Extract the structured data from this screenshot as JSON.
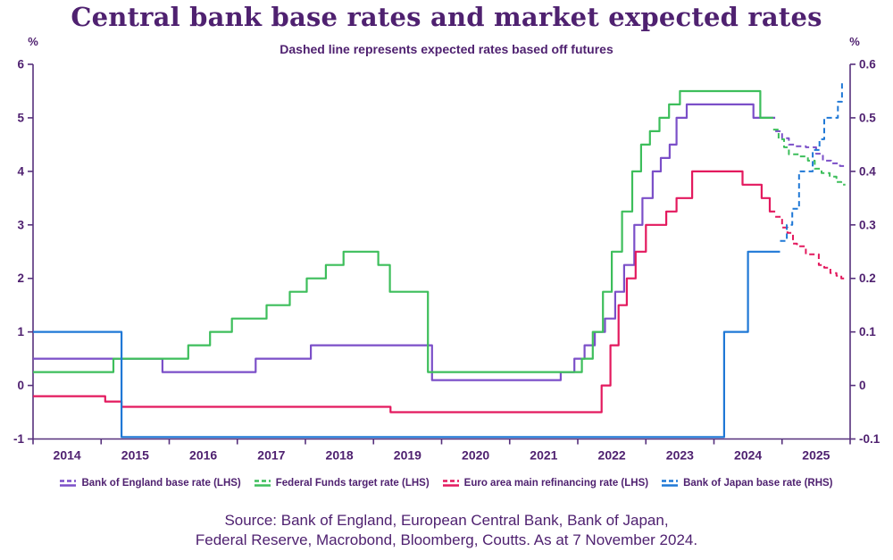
{
  "chart": {
    "title": "Central bank base rates and market expected rates",
    "subtitle": "Dashed line represents expected rates based off futures"
  },
  "source": {
    "line1": "Source: Bank of England, European Central Bank, Bank of Japan,",
    "line2": "Federal Reserve, Macrobond, Bloomberg, Coutts. As at 7 November 2024."
  },
  "colors": {
    "text_purple": "#4F2170",
    "axis_purple": "#56307C",
    "boe_purple": "#7B4FC8",
    "fed_green": "#3DBE5B",
    "ecb_red": "#E3195E",
    "boj_blue": "#1F78D6",
    "background": "#FFFFFF"
  },
  "legend": {
    "items": [
      {
        "id": "boe",
        "label": "Bank of England base rate (LHS)",
        "color": "#7B4FC8"
      },
      {
        "id": "fed",
        "label": "Federal Funds target rate (LHS)",
        "color": "#3DBE5B"
      },
      {
        "id": "ecb",
        "label": "Euro area main refinancing rate (LHS)",
        "color": "#E3195E"
      },
      {
        "id": "boj",
        "label": "Bank of Japan base rate (RHS)",
        "color": "#1F78D6"
      }
    ]
  },
  "chart_data": {
    "type": "line",
    "title": "Central bank base rates and market expected rates",
    "subtitle": "Dashed line represents expected rates based off futures",
    "note": "solid = actual policy rate, dashed = market expected rate from futures; x values are decimal years",
    "x_domain": [
      2014,
      2026
    ],
    "x_tick_years": [
      2014,
      2015,
      2016,
      2017,
      2018,
      2019,
      2020,
      2021,
      2022,
      2023,
      2024,
      2025,
      2026
    ],
    "x_tick_labels": [
      "2014",
      "2015",
      "2016",
      "2017",
      "2018",
      "2019",
      "2020",
      "2021",
      "2022",
      "2023",
      "2024",
      "2025"
    ],
    "grid": false,
    "legend_position": "bottom",
    "left_axis": {
      "unit": "%",
      "min": -1,
      "max": 6,
      "ticks": [
        6,
        5,
        4,
        3,
        2,
        1,
        0,
        -1
      ],
      "tick_labels": [
        "6",
        "5",
        "4",
        "3",
        "2",
        "1",
        "0",
        "-1"
      ]
    },
    "right_axis": {
      "unit": "%",
      "min": -0.1,
      "max": 0.6,
      "ticks": [
        0.6,
        0.5,
        0.4,
        0.3,
        0.2,
        0.1,
        0,
        -0.1
      ],
      "tick_labels": [
        "0.6",
        "0.5",
        "0.4",
        "0.3",
        "0.2",
        "0.1",
        "0",
        "-0.1"
      ]
    },
    "series": [
      {
        "id": "boe",
        "name": "Bank of England base rate (LHS)",
        "axis": "left",
        "color": "#7B4FC8",
        "solid": [
          [
            2014.0,
            0.5
          ],
          [
            2015.9,
            0.25
          ],
          [
            2017.27,
            0.5
          ],
          [
            2018.08,
            0.75
          ],
          [
            2019.86,
            0.1
          ],
          [
            2021.75,
            0.25
          ],
          [
            2021.95,
            0.5
          ],
          [
            2022.1,
            0.75
          ],
          [
            2022.25,
            1.0
          ],
          [
            2022.4,
            1.25
          ],
          [
            2022.55,
            1.75
          ],
          [
            2022.68,
            2.25
          ],
          [
            2022.83,
            3.0
          ],
          [
            2022.95,
            3.5
          ],
          [
            2023.1,
            4.0
          ],
          [
            2023.22,
            4.25
          ],
          [
            2023.35,
            4.5
          ],
          [
            2023.45,
            5.0
          ],
          [
            2023.6,
            5.25
          ],
          [
            2024.58,
            5.0
          ]
        ],
        "solid_end": 2024.9,
        "dashed": [
          [
            2024.9,
            4.75
          ],
          [
            2025.0,
            4.62
          ],
          [
            2025.1,
            4.5
          ],
          [
            2025.2,
            4.47
          ],
          [
            2025.35,
            4.45
          ],
          [
            2025.5,
            4.33
          ],
          [
            2025.6,
            4.2
          ],
          [
            2025.72,
            4.15
          ],
          [
            2025.85,
            4.1
          ]
        ],
        "dashed_end": 2025.93
      },
      {
        "id": "fed",
        "name": "Federal Funds target rate (LHS)",
        "axis": "left",
        "color": "#3DBE5B",
        "solid": [
          [
            2014.0,
            0.25
          ],
          [
            2015.18,
            0.5
          ],
          [
            2016.28,
            0.75
          ],
          [
            2016.6,
            1.0
          ],
          [
            2016.92,
            1.25
          ],
          [
            2017.43,
            1.5
          ],
          [
            2017.77,
            1.75
          ],
          [
            2018.02,
            2.0
          ],
          [
            2018.3,
            2.25
          ],
          [
            2018.56,
            2.5
          ],
          [
            2019.07,
            2.25
          ],
          [
            2019.24,
            1.75
          ],
          [
            2019.8,
            0.25
          ],
          [
            2022.06,
            0.5
          ],
          [
            2022.22,
            1.0
          ],
          [
            2022.37,
            1.75
          ],
          [
            2022.5,
            2.5
          ],
          [
            2022.65,
            3.25
          ],
          [
            2022.8,
            4.0
          ],
          [
            2022.93,
            4.5
          ],
          [
            2023.06,
            4.75
          ],
          [
            2023.2,
            5.0
          ],
          [
            2023.34,
            5.25
          ],
          [
            2023.5,
            5.5
          ],
          [
            2024.68,
            5.0
          ]
        ],
        "solid_end": 2024.87,
        "dashed": [
          [
            2024.87,
            4.78
          ],
          [
            2024.95,
            4.6
          ],
          [
            2025.03,
            4.45
          ],
          [
            2025.1,
            4.32
          ],
          [
            2025.25,
            4.28
          ],
          [
            2025.38,
            4.2
          ],
          [
            2025.48,
            4.05
          ],
          [
            2025.58,
            3.97
          ],
          [
            2025.7,
            3.9
          ],
          [
            2025.8,
            3.8
          ],
          [
            2025.87,
            3.75
          ]
        ],
        "dashed_end": 2025.93
      },
      {
        "id": "ecb",
        "name": "Euro area main refinancing rate (LHS)",
        "axis": "left",
        "color": "#E3195E",
        "solid": [
          [
            2014.0,
            -0.2
          ],
          [
            2015.06,
            -0.3
          ],
          [
            2015.3,
            -0.4
          ],
          [
            2019.25,
            -0.5
          ],
          [
            2022.35,
            0.0
          ],
          [
            2022.48,
            0.75
          ],
          [
            2022.6,
            1.5
          ],
          [
            2022.72,
            2.0
          ],
          [
            2022.85,
            2.5
          ],
          [
            2023.0,
            3.0
          ],
          [
            2023.3,
            3.25
          ],
          [
            2023.45,
            3.5
          ],
          [
            2023.68,
            4.0
          ],
          [
            2024.42,
            3.75
          ],
          [
            2024.7,
            3.5
          ],
          [
            2024.82,
            3.25
          ]
        ],
        "solid_end": 2024.9,
        "dashed": [
          [
            2024.9,
            3.15
          ],
          [
            2025.0,
            2.95
          ],
          [
            2025.08,
            2.85
          ],
          [
            2025.16,
            2.65
          ],
          [
            2025.22,
            2.6
          ],
          [
            2025.35,
            2.45
          ],
          [
            2025.54,
            2.25
          ],
          [
            2025.62,
            2.2
          ],
          [
            2025.71,
            2.1
          ],
          [
            2025.8,
            2.05
          ],
          [
            2025.87,
            2.0
          ]
        ],
        "dashed_end": 2025.93
      },
      {
        "id": "boj",
        "name": "Bank of Japan base rate (RHS)",
        "axis": "right",
        "color": "#1F78D6",
        "solid": [
          [
            2014.0,
            0.1
          ],
          [
            2015.3,
            -0.1
          ],
          [
            2024.15,
            0.1
          ],
          [
            2024.5,
            0.25
          ]
        ],
        "solid_end": 2024.97,
        "dashed": [
          [
            2024.97,
            0.27
          ],
          [
            2025.07,
            0.3
          ],
          [
            2025.15,
            0.33
          ],
          [
            2025.25,
            0.4
          ],
          [
            2025.45,
            0.44
          ],
          [
            2025.55,
            0.46
          ],
          [
            2025.62,
            0.5
          ],
          [
            2025.74,
            0.5
          ],
          [
            2025.82,
            0.53
          ],
          [
            2025.88,
            0.565
          ]
        ],
        "dashed_end": 2025.93
      }
    ]
  }
}
